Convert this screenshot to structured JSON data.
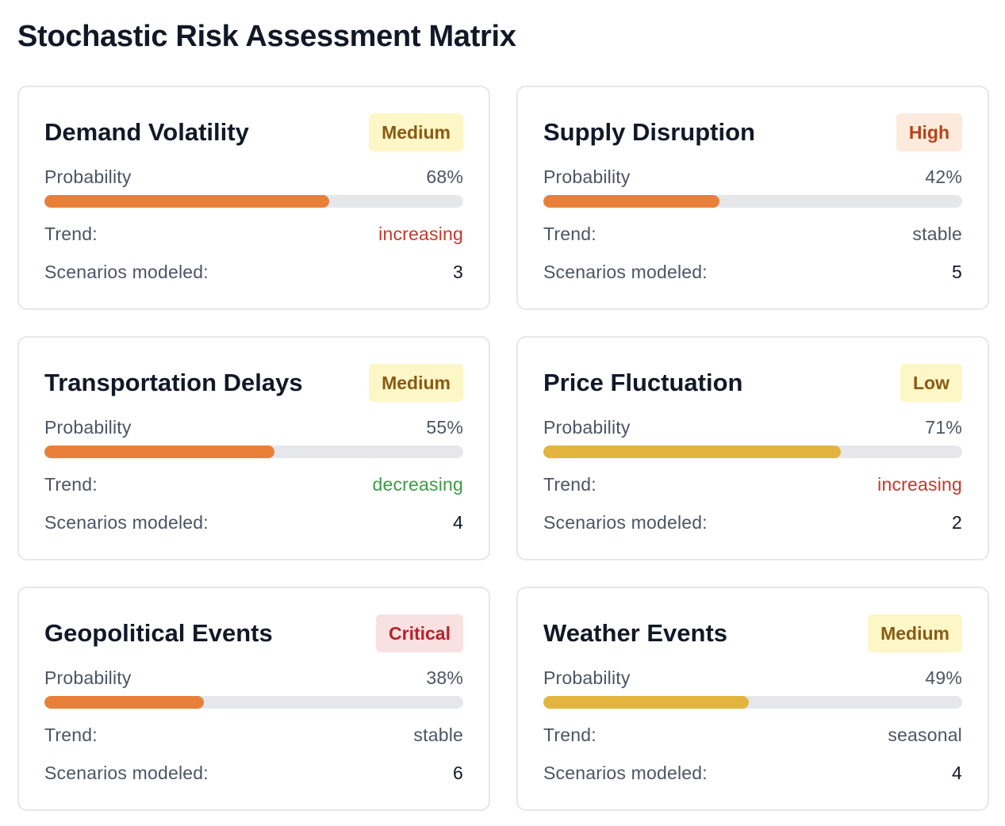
{
  "page": {
    "title": "Stochastic Risk Assessment Matrix"
  },
  "labels": {
    "probability": "Probability",
    "trend": "Trend:",
    "scenarios": "Scenarios modeled:"
  },
  "colors": {
    "bar_orange": "#e8803a",
    "bar_yellow": "#e3b53e",
    "trend_increasing": "#c5382d",
    "trend_decreasing": "#3e9a48",
    "trend_neutral": "#4b5563",
    "badge_medium_bg": "#fdf6c6",
    "badge_medium_fg": "#8a5a14",
    "badge_high_bg": "#fcebdc",
    "badge_high_fg": "#b4441a",
    "badge_low_bg": "#fdf6c6",
    "badge_low_fg": "#8a5a14",
    "badge_critical_bg": "#f9e1e1",
    "badge_critical_fg": "#b4232a"
  },
  "cards": [
    {
      "name": "Demand Volatility",
      "severity": "Medium",
      "severity_key": "medium",
      "probability": 0.68,
      "probability_label": "68%",
      "bar_color": "orange",
      "trend": "increasing",
      "scenarios": "3"
    },
    {
      "name": "Supply Disruption",
      "severity": "High",
      "severity_key": "high",
      "probability": 0.42,
      "probability_label": "42%",
      "bar_color": "orange",
      "trend": "stable",
      "scenarios": "5"
    },
    {
      "name": "Transportation Delays",
      "severity": "Medium",
      "severity_key": "medium",
      "probability": 0.55,
      "probability_label": "55%",
      "bar_color": "orange",
      "trend": "decreasing",
      "scenarios": "4"
    },
    {
      "name": "Price Fluctuation",
      "severity": "Low",
      "severity_key": "low",
      "probability": 0.71,
      "probability_label": "71%",
      "bar_color": "yellow",
      "trend": "increasing",
      "scenarios": "2"
    },
    {
      "name": "Geopolitical Events",
      "severity": "Critical",
      "severity_key": "critical",
      "probability": 0.38,
      "probability_label": "38%",
      "bar_color": "orange",
      "trend": "stable",
      "scenarios": "6"
    },
    {
      "name": "Weather Events",
      "severity": "Medium",
      "severity_key": "medium",
      "probability": 0.49,
      "probability_label": "49%",
      "bar_color": "yellow",
      "trend": "seasonal",
      "scenarios": "4"
    }
  ]
}
